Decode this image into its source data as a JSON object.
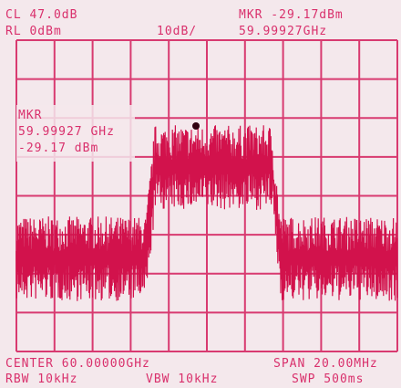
{
  "header": {
    "reference": "CL 47.0dB",
    "ref_level": "RL 0dBm",
    "scale": "10dB/",
    "marker": "MKR -29.17dBm",
    "marker_freq": "59.99927GHz"
  },
  "marker_box": {
    "label": "MKR",
    "freq": "59.99927 GHz",
    "level": "-29.17 dBm"
  },
  "footer": {
    "center": "CENTER 60.00000GHz",
    "span": "SPAN 20.00MHz",
    "rbw": "RBW 10kHz",
    "vbw": "VBW 10kHz",
    "sweep": "SWP 500ms"
  }
}
